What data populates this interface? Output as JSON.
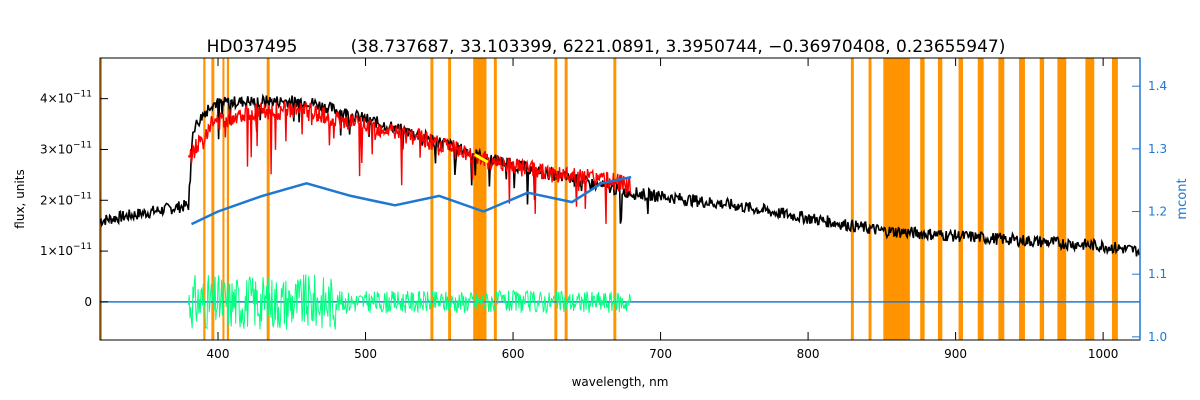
{
  "chart_data": {
    "type": "line",
    "title": "HD037495",
    "subtitle": "(38.737687, 33.103399, 6221.0891, 3.3950744, −0.36970408, 0.23655947)",
    "xlabel": "wavelength, nm",
    "ylabel": "flux, units",
    "y2label": "mcont",
    "xlim": [
      320,
      1025
    ],
    "ylim": [
      -7.5e-12,
      4.8e-11
    ],
    "y2lim": [
      0.995,
      1.445
    ],
    "x_ticks": [
      400,
      500,
      600,
      700,
      800,
      900,
      1000
    ],
    "y_ticks": [
      {
        "value": 0,
        "label": "0",
        "exp": ""
      },
      {
        "value": 1e-11,
        "label": "1×10",
        "exp": "−11"
      },
      {
        "value": 2e-11,
        "label": "2×10",
        "exp": "−11"
      },
      {
        "value": 3e-11,
        "label": "3×10",
        "exp": "−11"
      },
      {
        "value": 4e-11,
        "label": "4×10",
        "exp": "−11"
      }
    ],
    "y2_ticks": [
      1.0,
      1.1,
      1.2,
      1.3,
      1.4
    ],
    "colors": {
      "observed": "#000000",
      "model": "#ff0000",
      "residual": "#00ff7f",
      "continuum": "#1e78d2",
      "masked": "#ff9400",
      "highlight": "#ffff00"
    },
    "masked_bands_nm": [
      [
        320,
        321
      ],
      [
        390,
        391.5
      ],
      [
        395.5,
        397.5
      ],
      [
        403,
        404
      ],
      [
        406,
        407.5
      ],
      [
        433,
        435
      ],
      [
        544,
        546
      ],
      [
        556,
        558
      ],
      [
        573,
        582
      ],
      [
        587,
        589
      ],
      [
        628,
        630
      ],
      [
        635,
        637
      ],
      [
        668,
        670
      ],
      [
        829,
        831
      ],
      [
        841,
        843
      ],
      [
        851,
        869
      ],
      [
        876,
        879
      ],
      [
        888,
        891
      ],
      [
        902,
        905
      ],
      [
        915,
        919
      ],
      [
        929,
        933
      ],
      [
        943,
        947
      ],
      [
        957,
        960
      ],
      [
        969,
        975
      ],
      [
        988,
        994
      ],
      [
        1006,
        1010
      ]
    ],
    "series": [
      {
        "key": "observed",
        "x": [
          320,
          380,
          383,
          395,
          420,
          440,
          460,
          500,
          540,
          580,
          620,
          680,
          750,
          800,
          850,
          900,
          950,
          1000,
          1025
        ],
        "y": [
          1.6e-11,
          1.9e-11,
          3.4e-11,
          3.9e-11,
          3.95e-11,
          3.95e-11,
          3.95e-11,
          3.6e-11,
          3.25e-11,
          2.85e-11,
          2.55e-11,
          2.15e-11,
          1.9e-11,
          1.65e-11,
          1.4e-11,
          1.3e-11,
          1.2e-11,
          1.1e-11,
          1e-11
        ]
      },
      {
        "key": "model",
        "x": [
          380,
          395,
          420,
          460,
          500,
          540,
          580,
          620,
          660,
          680
        ],
        "y": [
          2.8e-11,
          3.5e-11,
          3.75e-11,
          3.75e-11,
          3.45e-11,
          3.2e-11,
          2.8e-11,
          2.55e-11,
          2.4e-11,
          2.3e-11
        ]
      },
      {
        "key": "residual",
        "x": [
          380,
          400,
          440,
          500,
          560,
          620,
          680
        ],
        "y": [
          0,
          0,
          0,
          0,
          0,
          0,
          0
        ]
      },
      {
        "key": "continuum",
        "axis": "right",
        "x": [
          382,
          400,
          430,
          460,
          490,
          520,
          550,
          580,
          610,
          640,
          660,
          680
        ],
        "y": [
          1.18,
          1.2,
          1.225,
          1.245,
          1.225,
          1.21,
          1.225,
          1.2,
          1.23,
          1.215,
          1.245,
          1.255
        ]
      }
    ]
  }
}
